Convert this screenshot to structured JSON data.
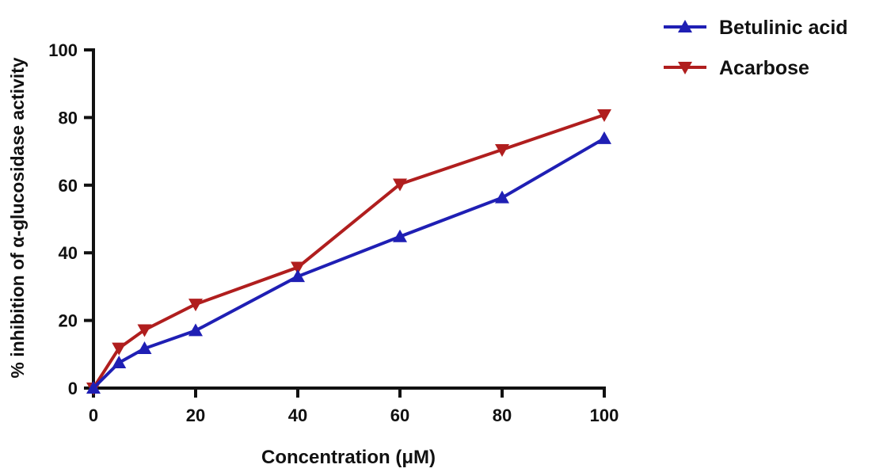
{
  "chart_data": {
    "type": "line",
    "title": "",
    "xlabel": "Concentration (μM)",
    "ylabel": "% inhibition of α-glucosidase activity",
    "xlim": [
      0,
      100
    ],
    "ylim": [
      0,
      100
    ],
    "xticks": [
      "0",
      "20",
      "40",
      "60",
      "80",
      "100"
    ],
    "yticks": [
      "0",
      "20",
      "40",
      "60",
      "80",
      "100"
    ],
    "grid": false,
    "legend_position": "top-right",
    "x": [
      0,
      5,
      10,
      20,
      40,
      60,
      80,
      100
    ],
    "series": [
      {
        "name": "Betulinic acid",
        "color": "#1f1fb4",
        "marker": "triangle-up",
        "values": [
          0,
          7.5,
          11.7,
          17,
          33,
          44.8,
          56.3,
          73.8
        ]
      },
      {
        "name": "Acarbose",
        "color": "#b01e1e",
        "marker": "triangle-down",
        "values": [
          0,
          11.8,
          17.2,
          24.8,
          35.7,
          60.3,
          70.5,
          80.8
        ]
      }
    ]
  }
}
